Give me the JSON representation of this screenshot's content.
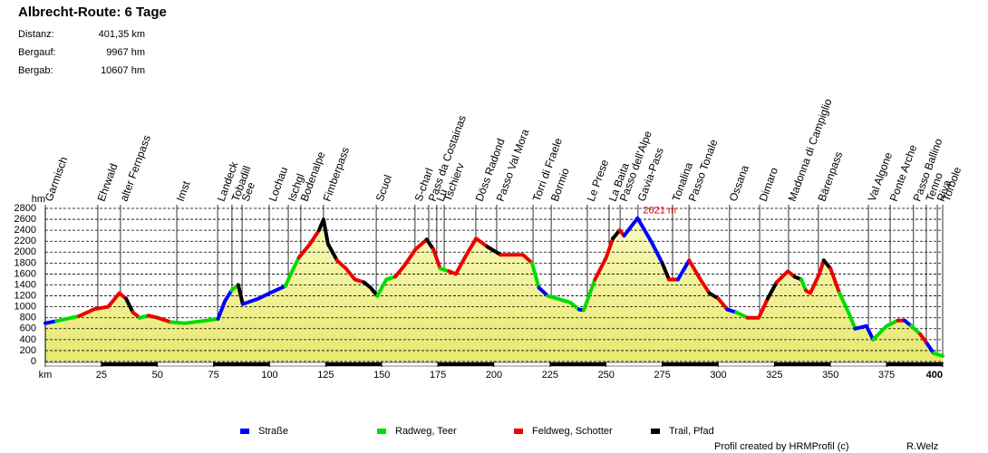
{
  "chart_data": {
    "type": "profile",
    "title": "Albrecht-Route: 6 Tage",
    "stats": [
      {
        "label": "Distanz:",
        "value": "401,35 km"
      },
      {
        "label": "Bergauf:",
        "value": "9967 hm"
      },
      {
        "label": "Bergab:",
        "value": "10607 hm"
      }
    ],
    "ylabel": "hm",
    "annotation": "2621 m",
    "series": [
      {
        "name": "Straße",
        "color": "#0000ff"
      },
      {
        "name": "Radweg, Teer",
        "color": "#00dd00"
      },
      {
        "name": "Feldweg, Schotter",
        "color": "#ee0000"
      },
      {
        "name": "Trail, Pfad",
        "color": "#000000"
      }
    ],
    "x": [
      0,
      5,
      15,
      22,
      28,
      33,
      36,
      39,
      42,
      46,
      50,
      56,
      62,
      70,
      77,
      80,
      83,
      86,
      88,
      95,
      100,
      107,
      110,
      113,
      118,
      122,
      124,
      126,
      130,
      134,
      138,
      142,
      145,
      148,
      152,
      156,
      160,
      165,
      170,
      173,
      176,
      180,
      183,
      187,
      192,
      197,
      203,
      213,
      217,
      220,
      224,
      234,
      238,
      240,
      245,
      250,
      253,
      256,
      258,
      264,
      270,
      275,
      278,
      282,
      287,
      292,
      296,
      300,
      304,
      308,
      313,
      318,
      322,
      326,
      331,
      334,
      337,
      339,
      341,
      345,
      347,
      350,
      354,
      358,
      361,
      366,
      369,
      375,
      380,
      383,
      386,
      390,
      393,
      396,
      400
    ],
    "values": [
      700,
      740,
      830,
      960,
      1000,
      1250,
      1150,
      900,
      800,
      840,
      800,
      720,
      700,
      740,
      780,
      1100,
      1300,
      1400,
      1050,
      1150,
      1250,
      1380,
      1650,
      1900,
      2150,
      2400,
      2600,
      2150,
      1850,
      1700,
      1500,
      1450,
      1350,
      1200,
      1500,
      1550,
      1750,
      2050,
      2230,
      2050,
      1700,
      1650,
      1600,
      1900,
      2250,
      2100,
      1950,
      1950,
      1800,
      1350,
      1200,
      1080,
      950,
      940,
      1500,
      1900,
      2250,
      2400,
      2300,
      2621,
      2200,
      1800,
      1500,
      1500,
      1850,
      1500,
      1250,
      1150,
      950,
      900,
      800,
      800,
      1150,
      1450,
      1650,
      1550,
      1500,
      1300,
      1250,
      1600,
      1850,
      1700,
      1250,
      900,
      600,
      650,
      400,
      650,
      750,
      750,
      650,
      500,
      330,
      150,
      100
    ],
    "surface": [
      0,
      1,
      2,
      2,
      2,
      2,
      3,
      2,
      1,
      2,
      2,
      1,
      1,
      1,
      0,
      0,
      1,
      3,
      0,
      0,
      0,
      1,
      1,
      2,
      2,
      3,
      3,
      3,
      2,
      2,
      2,
      3,
      3,
      1,
      1,
      2,
      2,
      2,
      3,
      2,
      1,
      2,
      2,
      2,
      2,
      3,
      2,
      2,
      1,
      0,
      1,
      1,
      0,
      1,
      2,
      2,
      3,
      2,
      0,
      0,
      0,
      3,
      2,
      0,
      2,
      2,
      3,
      2,
      0,
      1,
      2,
      2,
      3,
      2,
      2,
      3,
      1,
      2,
      2,
      2,
      3,
      2,
      1,
      1,
      0,
      0,
      1,
      1,
      2,
      0,
      1,
      2,
      0,
      1
    ],
    "waypoints": [
      {
        "name": "Garmisch",
        "km": 0
      },
      {
        "name": "Ehrwald",
        "km": 23.4
      },
      {
        "name": "alter Fernpass",
        "km": 33.5
      },
      {
        "name": "Imst",
        "km": 58.6
      },
      {
        "name": "Landeck",
        "km": 76.8
      },
      {
        "name": "Tobadill",
        "km": 83.2
      },
      {
        "name": "See",
        "km": 87.7
      },
      {
        "name": "Lochau",
        "km": 99.8
      },
      {
        "name": "Ischgl",
        "km": 108.3
      },
      {
        "name": "Bodenalpe",
        "km": 113.9
      },
      {
        "name": "Fimberpass",
        "km": 124
      },
      {
        "name": "Scuol",
        "km": 147.5
      },
      {
        "name": "S-charl",
        "km": 164.8
      },
      {
        "name": "Pass da Costainas",
        "km": 170.9
      },
      {
        "name": "Lü",
        "km": 174.5
      },
      {
        "name": "Tschierv",
        "km": 177.8
      },
      {
        "name": "Döss Radond",
        "km": 191.9
      },
      {
        "name": "Passo Val Mora",
        "km": 201.2
      },
      {
        "name": "Torri di Fraele",
        "km": 217.4
      },
      {
        "name": "Bormio",
        "km": 225.5
      },
      {
        "name": "Le Prese",
        "km": 241.6
      },
      {
        "name": "La Baita",
        "km": 251.3
      },
      {
        "name": "Passo dell'Alpe",
        "km": 256.2
      },
      {
        "name": "Gavia-Pass",
        "km": 264.2
      },
      {
        "name": "Tonalina",
        "km": 279.6
      },
      {
        "name": "Passo Tonale",
        "km": 286.9
      },
      {
        "name": "Ossana",
        "km": 305
      },
      {
        "name": "Dimaro",
        "km": 318.4
      },
      {
        "name": "Madonna di Campiglio",
        "km": 331.3
      },
      {
        "name": "Bärenpass",
        "km": 344.6
      },
      {
        "name": "Val Algone",
        "km": 366.9
      },
      {
        "name": "Ponte Arche",
        "km": 376.6
      },
      {
        "name": "Passo Ballino",
        "km": 387
      },
      {
        "name": "Tenno",
        "km": 392.7
      },
      {
        "name": "Riva",
        "km": 397.6
      },
      {
        "name": "Torbole",
        "km": 400
      }
    ],
    "xlim": [
      0,
      400
    ],
    "ylim": [
      0,
      2800
    ],
    "xticks": [
      {
        "value": 0,
        "label": "km"
      },
      25,
      50,
      75,
      100,
      125,
      150,
      175,
      200,
      225,
      250,
      275,
      300,
      325,
      350,
      375,
      400
    ],
    "yticks": [
      0,
      200,
      400,
      600,
      800,
      1000,
      1200,
      1400,
      1600,
      1800,
      2000,
      2200,
      2400,
      2600,
      2800
    ],
    "grid": true,
    "credit": "Profil created by HRMProfil (c)",
    "author": "R.Welz"
  }
}
